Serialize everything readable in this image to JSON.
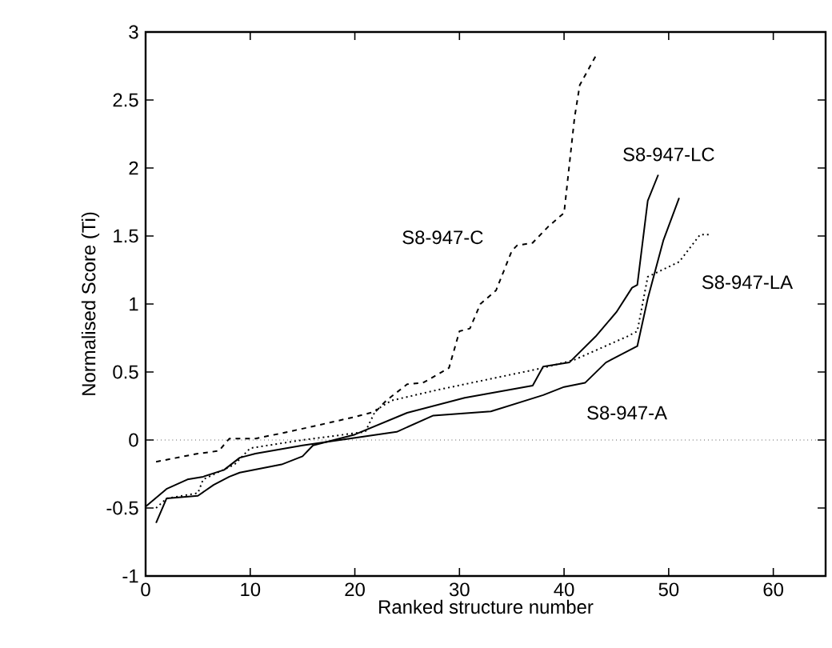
{
  "chart_data": {
    "type": "line",
    "xlabel": "Ranked structure number",
    "ylabel": "Normalised Score (Ti)",
    "xlim": [
      0,
      65
    ],
    "ylim": [
      -1,
      3
    ],
    "xticks": [
      0,
      10,
      20,
      30,
      40,
      50,
      60
    ],
    "yticks": [
      -1,
      -0.5,
      0,
      0.5,
      1,
      1.5,
      2,
      2.5,
      3
    ],
    "grid": false,
    "ref_lines": [
      {
        "axis": "y",
        "value": 0,
        "label": null,
        "color": "#000000",
        "line_style": "dotted"
      }
    ],
    "series": [
      {
        "name": "S8-947-C",
        "color": "#000000",
        "line_style": "dashed",
        "x": [
          1,
          5,
          7,
          8,
          10.5,
          13,
          16,
          20,
          22,
          23,
          25,
          26.5,
          29,
          30,
          31,
          32,
          33.5,
          35,
          35.5,
          37,
          38.5,
          40,
          40.5,
          41,
          41.5,
          43
        ],
        "values": [
          -0.16,
          -0.1,
          -0.08,
          0.01,
          0.01,
          0.05,
          0.1,
          0.17,
          0.21,
          0.29,
          0.41,
          0.42,
          0.53,
          0.8,
          0.82,
          1.0,
          1.1,
          1.39,
          1.43,
          1.45,
          1.57,
          1.67,
          2.02,
          2.37,
          2.61,
          2.82
        ]
      },
      {
        "name": "S8-947-LC",
        "color": "#000000",
        "line_style": "solid",
        "x": [
          1,
          2,
          5,
          6.5,
          8,
          9,
          13,
          15,
          16,
          20,
          25,
          30.5,
          37,
          38,
          40.5,
          43,
          45,
          46.5,
          47,
          48,
          49
        ],
        "values": [
          -0.61,
          -0.43,
          -0.41,
          -0.33,
          -0.27,
          -0.24,
          -0.18,
          -0.12,
          -0.04,
          0.04,
          0.2,
          0.31,
          0.4,
          0.54,
          0.57,
          0.76,
          0.94,
          1.12,
          1.14,
          1.76,
          1.95
        ]
      },
      {
        "name": "S8-947-LA",
        "color": "#000000",
        "line_style": "dotted",
        "x": [
          1,
          2,
          5,
          5.5,
          8.5,
          10,
          15,
          21,
          22,
          23.5,
          28,
          33,
          38,
          41,
          46,
          47,
          48,
          51,
          53,
          54
        ],
        "values": [
          -0.5,
          -0.43,
          -0.39,
          -0.29,
          -0.18,
          -0.06,
          0,
          0.06,
          0.22,
          0.29,
          0.37,
          0.45,
          0.53,
          0.59,
          0.76,
          0.8,
          1.2,
          1.31,
          1.51,
          1.51
        ]
      },
      {
        "name": "S8-947-A",
        "color": "#000000",
        "line_style": "solid",
        "x": [
          0,
          2,
          4,
          5.5,
          7.5,
          9,
          10.5,
          15,
          19.5,
          24,
          27.5,
          33,
          38,
          40,
          42,
          44,
          47,
          48,
          49.5,
          51
        ],
        "values": [
          -0.49,
          -0.36,
          -0.29,
          -0.27,
          -0.22,
          -0.13,
          -0.1,
          -0.04,
          0.01,
          0.06,
          0.18,
          0.21,
          0.33,
          0.39,
          0.42,
          0.57,
          0.69,
          1.04,
          1.47,
          1.78
        ]
      }
    ]
  }
}
